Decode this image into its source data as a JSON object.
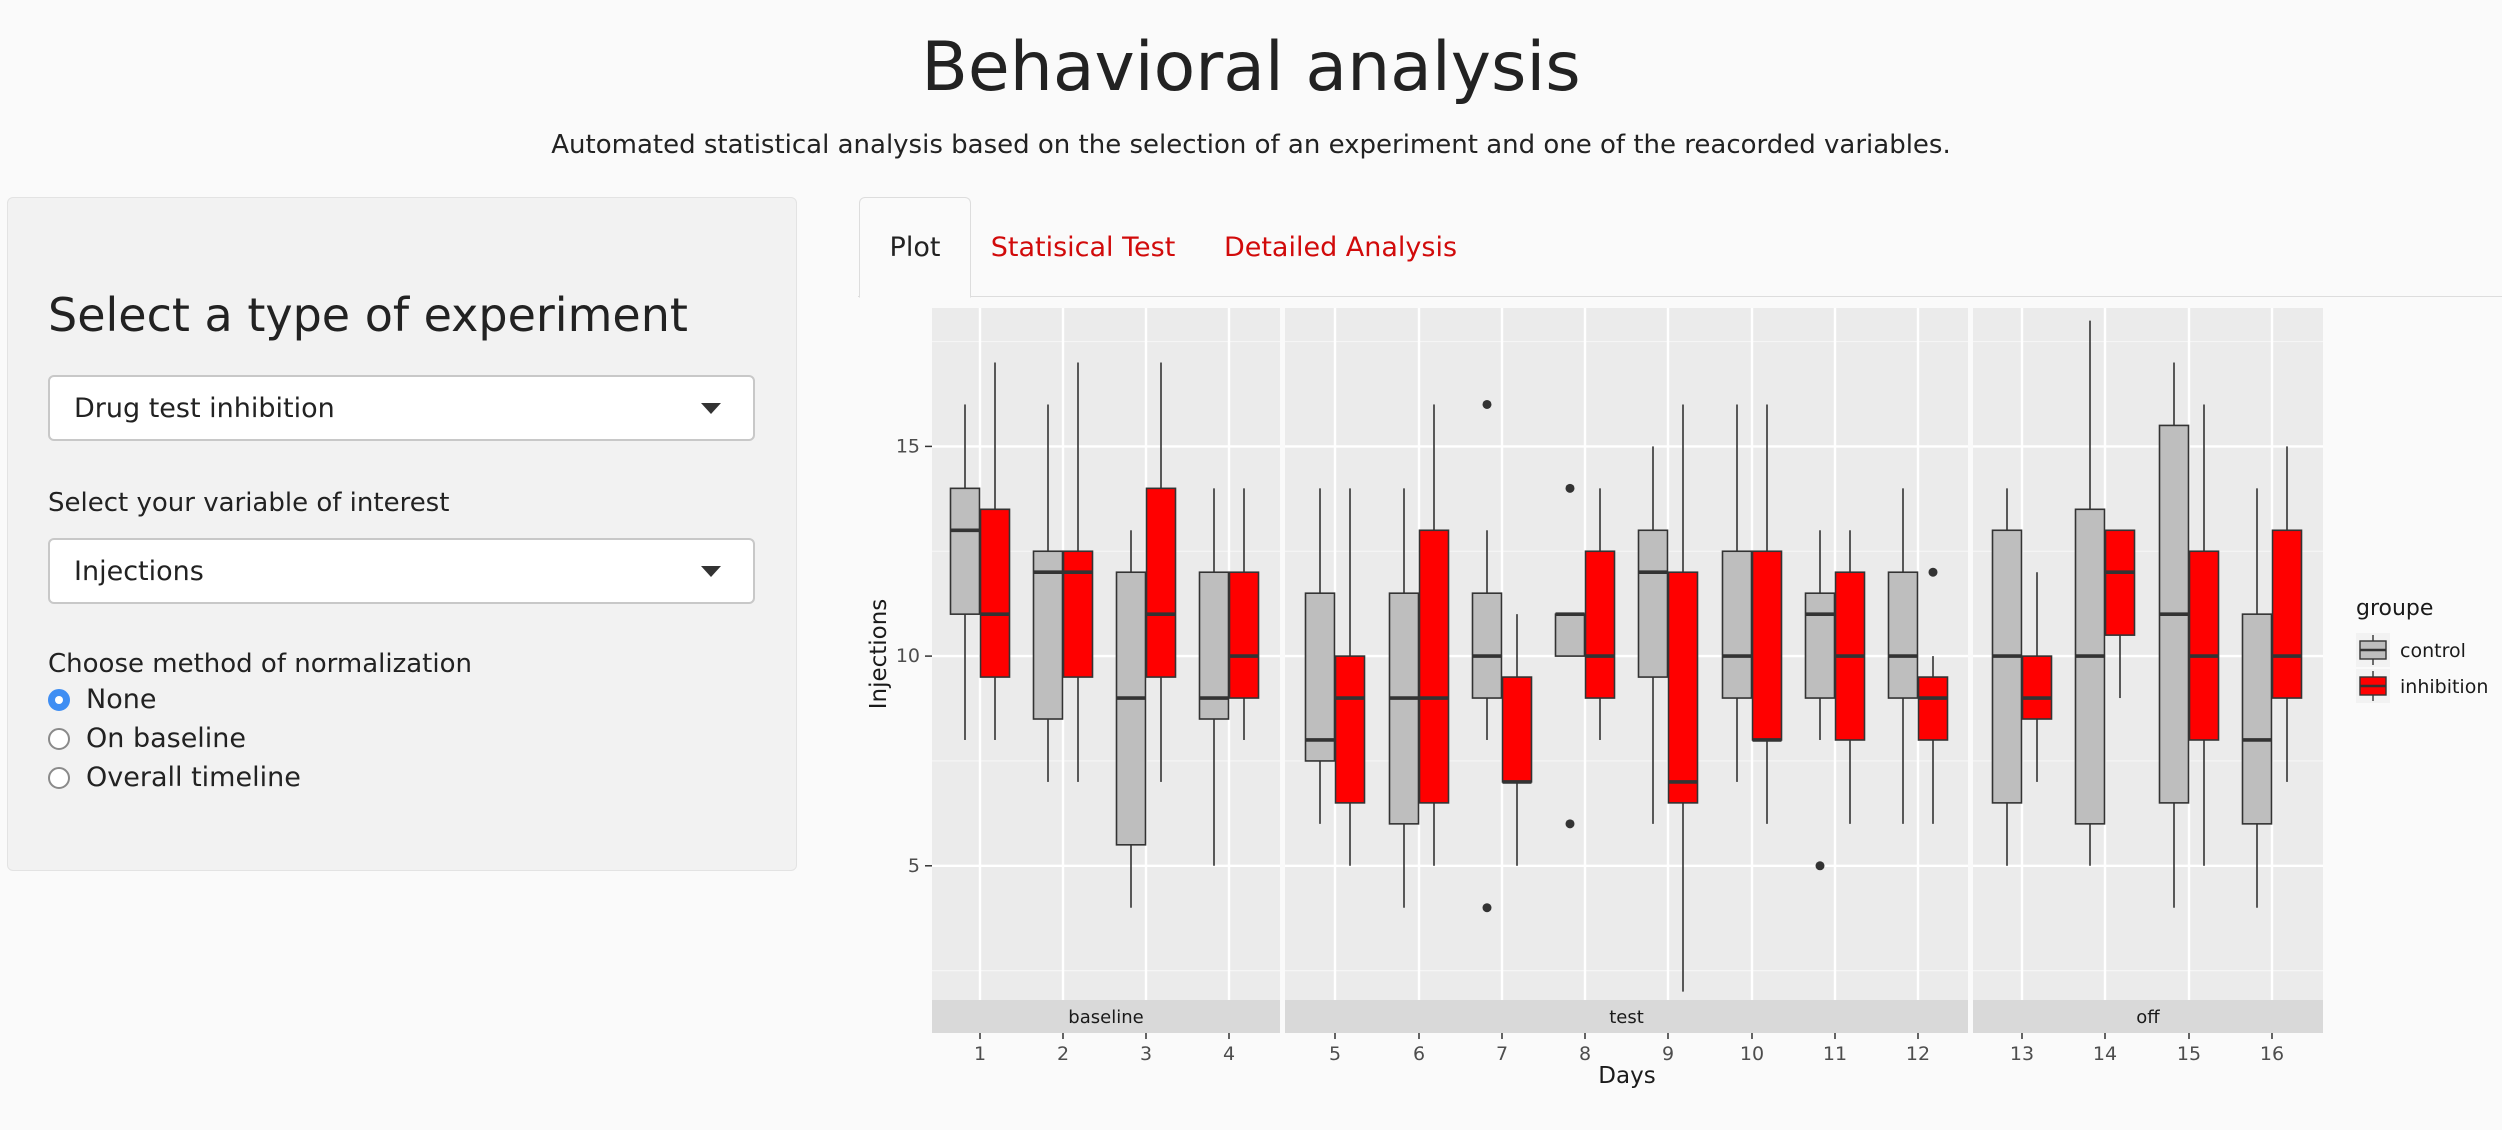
{
  "header": {
    "title": "Behavioral analysis",
    "subtitle": "Automated statistical analysis based on the selection of an experiment and one of the reacorded variables."
  },
  "sidebar": {
    "heading": "Select a type of experiment",
    "experiment_select": {
      "value": "Drug test inhibition"
    },
    "variable_label": "Select your variable of interest",
    "variable_select": {
      "value": "Injections"
    },
    "normalization_label": "Choose method of normalization",
    "normalization_options": [
      {
        "label": "None",
        "checked": true
      },
      {
        "label": "On baseline",
        "checked": false
      },
      {
        "label": "Overall timeline",
        "checked": false
      }
    ]
  },
  "tabs": [
    {
      "label": "Plot",
      "active": true
    },
    {
      "label": "Statisical Test",
      "active": false
    },
    {
      "label": "Detailed Analysis",
      "active": false
    }
  ],
  "colors": {
    "accent": "#d10a0a",
    "control": "#bebebe",
    "inhibition": "#ff0000",
    "panel_bg": "#ebebeb",
    "strip_bg": "#d9d9d9",
    "radio": "#3f8ef3"
  },
  "chart_data": {
    "type": "boxplot",
    "xlabel": "Days",
    "ylabel": "Injections",
    "ylim": [
      1.8,
      18.3
    ],
    "yticks": [
      5,
      10,
      15
    ],
    "legend": {
      "title": "groupe",
      "entries": [
        "control",
        "inhibition"
      ],
      "placement": "right"
    },
    "facets": [
      {
        "label": "baseline",
        "days": [
          1,
          2,
          3,
          4
        ]
      },
      {
        "label": "test",
        "days": [
          5,
          6,
          7,
          8,
          9,
          10,
          11,
          12
        ]
      },
      {
        "label": "off",
        "days": [
          13,
          14,
          15,
          16
        ]
      }
    ],
    "series": [
      {
        "name": "control",
        "boxes": [
          {
            "day": 1,
            "lower": 8,
            "q1": 11,
            "median": 13,
            "q3": 14,
            "upper": 16,
            "outliers": []
          },
          {
            "day": 2,
            "lower": 7,
            "q1": 8.5,
            "median": 12,
            "q3": 12.5,
            "upper": 16,
            "outliers": []
          },
          {
            "day": 3,
            "lower": 4,
            "q1": 5.5,
            "median": 9,
            "q3": 12,
            "upper": 13,
            "outliers": []
          },
          {
            "day": 4,
            "lower": 5,
            "q1": 8.5,
            "median": 9,
            "q3": 12,
            "upper": 14,
            "outliers": []
          },
          {
            "day": 5,
            "lower": 6,
            "q1": 7.5,
            "median": 8,
            "q3": 11.5,
            "upper": 14,
            "outliers": []
          },
          {
            "day": 6,
            "lower": 4,
            "q1": 6,
            "median": 9,
            "q3": 11.5,
            "upper": 14,
            "outliers": []
          },
          {
            "day": 7,
            "lower": 8,
            "q1": 9,
            "median": 10,
            "q3": 11.5,
            "upper": 13,
            "outliers": [
              16,
              4
            ]
          },
          {
            "day": 8,
            "lower": 10,
            "q1": 10,
            "median": 11,
            "q3": 11,
            "upper": 11,
            "outliers": [
              14,
              6
            ]
          },
          {
            "day": 9,
            "lower": 6,
            "q1": 9.5,
            "median": 12,
            "q3": 13,
            "upper": 15,
            "outliers": []
          },
          {
            "day": 10,
            "lower": 7,
            "q1": 9,
            "median": 10,
            "q3": 12.5,
            "upper": 16,
            "outliers": []
          },
          {
            "day": 11,
            "lower": 8,
            "q1": 9,
            "median": 11,
            "q3": 11.5,
            "upper": 13,
            "outliers": [
              5
            ]
          },
          {
            "day": 12,
            "lower": 6,
            "q1": 9,
            "median": 10,
            "q3": 12,
            "upper": 14,
            "outliers": []
          },
          {
            "day": 13,
            "lower": 5,
            "q1": 6.5,
            "median": 10,
            "q3": 13,
            "upper": 14,
            "outliers": []
          },
          {
            "day": 14,
            "lower": 5,
            "q1": 6,
            "median": 10,
            "q3": 13.5,
            "upper": 18,
            "outliers": []
          },
          {
            "day": 15,
            "lower": 4,
            "q1": 6.5,
            "median": 11,
            "q3": 15.5,
            "upper": 17,
            "outliers": []
          },
          {
            "day": 16,
            "lower": 4,
            "q1": 6,
            "median": 8,
            "q3": 11,
            "upper": 14,
            "outliers": []
          }
        ]
      },
      {
        "name": "inhibition",
        "boxes": [
          {
            "day": 1,
            "lower": 8,
            "q1": 9.5,
            "median": 11,
            "q3": 13.5,
            "upper": 17,
            "outliers": []
          },
          {
            "day": 2,
            "lower": 7,
            "q1": 9.5,
            "median": 12,
            "q3": 12.5,
            "upper": 17,
            "outliers": []
          },
          {
            "day": 3,
            "lower": 7,
            "q1": 9.5,
            "median": 11,
            "q3": 14,
            "upper": 17,
            "outliers": []
          },
          {
            "day": 4,
            "lower": 8,
            "q1": 9,
            "median": 10,
            "q3": 12,
            "upper": 14,
            "outliers": []
          },
          {
            "day": 5,
            "lower": 5,
            "q1": 6.5,
            "median": 9,
            "q3": 10,
            "upper": 14,
            "outliers": []
          },
          {
            "day": 6,
            "lower": 5,
            "q1": 6.5,
            "median": 9,
            "q3": 13,
            "upper": 16,
            "outliers": []
          },
          {
            "day": 7,
            "lower": 5,
            "q1": 7,
            "median": 7,
            "q3": 9.5,
            "upper": 11,
            "outliers": []
          },
          {
            "day": 8,
            "lower": 8,
            "q1": 9,
            "median": 10,
            "q3": 12.5,
            "upper": 14,
            "outliers": []
          },
          {
            "day": 9,
            "lower": 2,
            "q1": 6.5,
            "median": 7,
            "q3": 12,
            "upper": 16,
            "outliers": []
          },
          {
            "day": 10,
            "lower": 6,
            "q1": 8,
            "median": 8,
            "q3": 12.5,
            "upper": 16,
            "outliers": []
          },
          {
            "day": 11,
            "lower": 6,
            "q1": 8,
            "median": 10,
            "q3": 12,
            "upper": 13,
            "outliers": []
          },
          {
            "day": 12,
            "lower": 6,
            "q1": 8,
            "median": 9,
            "q3": 9.5,
            "upper": 10,
            "outliers": [
              12
            ]
          },
          {
            "day": 13,
            "lower": 7,
            "q1": 8.5,
            "median": 9,
            "q3": 10,
            "upper": 12,
            "outliers": []
          },
          {
            "day": 14,
            "lower": 9,
            "q1": 10.5,
            "median": 12,
            "q3": 13,
            "upper": 13,
            "outliers": []
          },
          {
            "day": 15,
            "lower": 5,
            "q1": 8,
            "median": 10,
            "q3": 12.5,
            "upper": 16,
            "outliers": []
          },
          {
            "day": 16,
            "lower": 7,
            "q1": 9,
            "median": 10,
            "q3": 13,
            "upper": 15,
            "outliers": []
          }
        ]
      }
    ]
  }
}
